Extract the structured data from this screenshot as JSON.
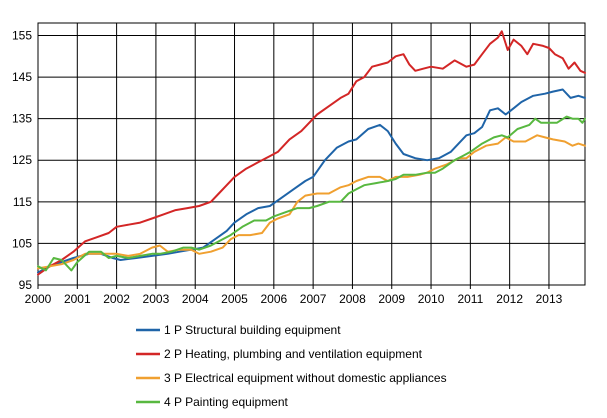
{
  "chart_data": {
    "type": "line",
    "title": "",
    "xlabel": "",
    "ylabel": "",
    "x_ticks": [
      "2000",
      "2001",
      "2002",
      "2003",
      "2004",
      "2005",
      "2006",
      "2007",
      "2008",
      "2009",
      "2010",
      "2011",
      "2012",
      "2013"
    ],
    "x_range": [
      2000.0,
      2013.917
    ],
    "y_ticks": [
      "95",
      "105",
      "115",
      "125",
      "135",
      "145",
      "155"
    ],
    "ylim": [
      95,
      158
    ],
    "grid": true,
    "legend_position": "bottom",
    "series": [
      {
        "name": "1 P Structural building equipment",
        "color": "#1f64a8",
        "points": [
          [
            2000.0,
            98
          ],
          [
            2000.3,
            99.5
          ],
          [
            2000.6,
            100.5
          ],
          [
            2000.9,
            101.5
          ],
          [
            2001.3,
            102.5
          ],
          [
            2001.6,
            102.5
          ],
          [
            2001.9,
            101.5
          ],
          [
            2002.1,
            101
          ],
          [
            2002.5,
            101.5
          ],
          [
            2002.9,
            102
          ],
          [
            2003.3,
            102.5
          ],
          [
            2003.6,
            103
          ],
          [
            2003.9,
            103.5
          ],
          [
            2004.2,
            104
          ],
          [
            2004.5,
            106
          ],
          [
            2004.8,
            108
          ],
          [
            2005.0,
            110
          ],
          [
            2005.3,
            112
          ],
          [
            2005.6,
            113.5
          ],
          [
            2005.9,
            114
          ],
          [
            2006.2,
            116
          ],
          [
            2006.5,
            118
          ],
          [
            2006.8,
            120
          ],
          [
            2007.0,
            121
          ],
          [
            2007.3,
            125
          ],
          [
            2007.6,
            128
          ],
          [
            2007.9,
            129.5
          ],
          [
            2008.1,
            130
          ],
          [
            2008.4,
            132.5
          ],
          [
            2008.7,
            133.5
          ],
          [
            2008.9,
            132
          ],
          [
            2009.1,
            129
          ],
          [
            2009.3,
            126.5
          ],
          [
            2009.6,
            125.5
          ],
          [
            2009.9,
            125
          ],
          [
            2010.2,
            125.5
          ],
          [
            2010.5,
            127
          ],
          [
            2010.7,
            129
          ],
          [
            2010.9,
            131
          ],
          [
            2011.1,
            131.5
          ],
          [
            2011.3,
            133
          ],
          [
            2011.5,
            137
          ],
          [
            2011.7,
            137.5
          ],
          [
            2011.9,
            136
          ],
          [
            2012.1,
            137.5
          ],
          [
            2012.3,
            139
          ],
          [
            2012.6,
            140.5
          ],
          [
            2012.9,
            141
          ],
          [
            2013.1,
            141.5
          ],
          [
            2013.35,
            142
          ],
          [
            2013.55,
            140
          ],
          [
            2013.75,
            140.5
          ],
          [
            2013.917,
            140
          ]
        ]
      },
      {
        "name": "2 P Heating, plumbing and ventilation equipment",
        "color": "#d32626",
        "points": [
          [
            2000.0,
            97.5
          ],
          [
            2000.3,
            99.5
          ],
          [
            2000.6,
            101
          ],
          [
            2000.9,
            103
          ],
          [
            2001.2,
            105.5
          ],
          [
            2001.5,
            106.5
          ],
          [
            2001.8,
            107.5
          ],
          [
            2002.0,
            109
          ],
          [
            2002.3,
            109.5
          ],
          [
            2002.6,
            110
          ],
          [
            2002.9,
            111
          ],
          [
            2003.2,
            112
          ],
          [
            2003.5,
            113
          ],
          [
            2003.8,
            113.5
          ],
          [
            2004.1,
            114
          ],
          [
            2004.4,
            115
          ],
          [
            2004.6,
            117
          ],
          [
            2004.8,
            119
          ],
          [
            2005.0,
            121
          ],
          [
            2005.3,
            123
          ],
          [
            2005.6,
            124.5
          ],
          [
            2005.9,
            126
          ],
          [
            2006.1,
            127
          ],
          [
            2006.4,
            130
          ],
          [
            2006.7,
            132
          ],
          [
            2006.9,
            134
          ],
          [
            2007.1,
            136
          ],
          [
            2007.4,
            138
          ],
          [
            2007.7,
            140
          ],
          [
            2007.9,
            141
          ],
          [
            2008.1,
            144
          ],
          [
            2008.3,
            145
          ],
          [
            2008.5,
            147.5
          ],
          [
            2008.7,
            148
          ],
          [
            2008.9,
            148.5
          ],
          [
            2009.1,
            150
          ],
          [
            2009.3,
            150.5
          ],
          [
            2009.45,
            148
          ],
          [
            2009.6,
            146.5
          ],
          [
            2009.8,
            147
          ],
          [
            2010.0,
            147.5
          ],
          [
            2010.3,
            147
          ],
          [
            2010.6,
            149
          ],
          [
            2010.9,
            147.5
          ],
          [
            2011.1,
            148
          ],
          [
            2011.3,
            150.5
          ],
          [
            2011.5,
            153
          ],
          [
            2011.7,
            154.5
          ],
          [
            2011.8,
            156
          ],
          [
            2011.95,
            151.5
          ],
          [
            2012.1,
            154
          ],
          [
            2012.3,
            152.5
          ],
          [
            2012.45,
            150.5
          ],
          [
            2012.6,
            153
          ],
          [
            2012.85,
            152.5
          ],
          [
            2013.0,
            152
          ],
          [
            2013.15,
            150.5
          ],
          [
            2013.35,
            149.5
          ],
          [
            2013.5,
            147
          ],
          [
            2013.65,
            148.5
          ],
          [
            2013.8,
            146.5
          ],
          [
            2013.917,
            146
          ]
        ]
      },
      {
        "name": "3 P Electrical equipment without domestic appliances",
        "color": "#f0a030",
        "points": [
          [
            2000.0,
            99
          ],
          [
            2000.3,
            99.5
          ],
          [
            2000.6,
            100
          ],
          [
            2000.9,
            101
          ],
          [
            2001.2,
            102.5
          ],
          [
            2001.5,
            102.5
          ],
          [
            2001.8,
            102.5
          ],
          [
            2002.0,
            102.5
          ],
          [
            2002.3,
            102
          ],
          [
            2002.6,
            102.5
          ],
          [
            2002.9,
            104
          ],
          [
            2003.1,
            104.5
          ],
          [
            2003.3,
            103
          ],
          [
            2003.6,
            103.5
          ],
          [
            2003.9,
            103.5
          ],
          [
            2004.1,
            102.5
          ],
          [
            2004.4,
            103
          ],
          [
            2004.7,
            104
          ],
          [
            2004.9,
            106
          ],
          [
            2005.1,
            107
          ],
          [
            2005.4,
            107
          ],
          [
            2005.7,
            107.5
          ],
          [
            2005.9,
            110
          ],
          [
            2006.1,
            111
          ],
          [
            2006.4,
            112
          ],
          [
            2006.6,
            115
          ],
          [
            2006.8,
            116.5
          ],
          [
            2007.1,
            117
          ],
          [
            2007.4,
            117
          ],
          [
            2007.7,
            118.5
          ],
          [
            2007.9,
            119
          ],
          [
            2008.1,
            120
          ],
          [
            2008.4,
            121
          ],
          [
            2008.7,
            121
          ],
          [
            2008.9,
            120
          ],
          [
            2009.1,
            121
          ],
          [
            2009.4,
            121
          ],
          [
            2009.7,
            121.5
          ],
          [
            2009.9,
            122
          ],
          [
            2010.1,
            123
          ],
          [
            2010.4,
            124
          ],
          [
            2010.7,
            125.5
          ],
          [
            2010.9,
            125.5
          ],
          [
            2011.1,
            127
          ],
          [
            2011.4,
            128.5
          ],
          [
            2011.7,
            129
          ],
          [
            2011.9,
            130.5
          ],
          [
            2012.1,
            129.5
          ],
          [
            2012.4,
            129.5
          ],
          [
            2012.7,
            131
          ],
          [
            2012.9,
            130.5
          ],
          [
            2013.1,
            130
          ],
          [
            2013.4,
            129.5
          ],
          [
            2013.6,
            128.5
          ],
          [
            2013.75,
            129
          ],
          [
            2013.917,
            128.5
          ]
        ]
      },
      {
        "name": "4 P Painting equipment",
        "color": "#58b840",
        "points": [
          [
            2000.0,
            99.5
          ],
          [
            2000.2,
            98.5
          ],
          [
            2000.4,
            101.5
          ],
          [
            2000.6,
            101
          ],
          [
            2000.85,
            98.5
          ],
          [
            2001.0,
            100.5
          ],
          [
            2001.3,
            103
          ],
          [
            2001.6,
            103
          ],
          [
            2001.8,
            101.5
          ],
          [
            2002.0,
            102
          ],
          [
            2002.3,
            101.5
          ],
          [
            2002.6,
            102
          ],
          [
            2002.9,
            102.5
          ],
          [
            2003.1,
            102.5
          ],
          [
            2003.4,
            103
          ],
          [
            2003.7,
            104
          ],
          [
            2003.9,
            104
          ],
          [
            2004.1,
            103.5
          ],
          [
            2004.4,
            104.5
          ],
          [
            2004.7,
            106
          ],
          [
            2004.9,
            107
          ],
          [
            2005.2,
            109
          ],
          [
            2005.5,
            110.5
          ],
          [
            2005.8,
            110.5
          ],
          [
            2006.0,
            111.5
          ],
          [
            2006.3,
            112.5
          ],
          [
            2006.6,
            113.5
          ],
          [
            2006.9,
            113.5
          ],
          [
            2007.1,
            114
          ],
          [
            2007.4,
            115
          ],
          [
            2007.7,
            115
          ],
          [
            2007.9,
            117
          ],
          [
            2008.1,
            118
          ],
          [
            2008.3,
            119
          ],
          [
            2008.6,
            119.5
          ],
          [
            2008.9,
            120
          ],
          [
            2009.1,
            120.5
          ],
          [
            2009.3,
            121.5
          ],
          [
            2009.6,
            121.5
          ],
          [
            2009.9,
            122
          ],
          [
            2010.1,
            122
          ],
          [
            2010.3,
            123
          ],
          [
            2010.6,
            125
          ],
          [
            2010.8,
            126
          ],
          [
            2011.0,
            127
          ],
          [
            2011.3,
            129
          ],
          [
            2011.6,
            130.5
          ],
          [
            2011.8,
            131
          ],
          [
            2011.95,
            130.5
          ],
          [
            2012.2,
            132.5
          ],
          [
            2012.5,
            133.5
          ],
          [
            2012.65,
            135
          ],
          [
            2012.8,
            134
          ],
          [
            2013.0,
            134
          ],
          [
            2013.2,
            134
          ],
          [
            2013.45,
            135.5
          ],
          [
            2013.6,
            135
          ],
          [
            2013.75,
            135
          ],
          [
            2013.85,
            134
          ],
          [
            2013.917,
            135
          ]
        ]
      }
    ]
  }
}
